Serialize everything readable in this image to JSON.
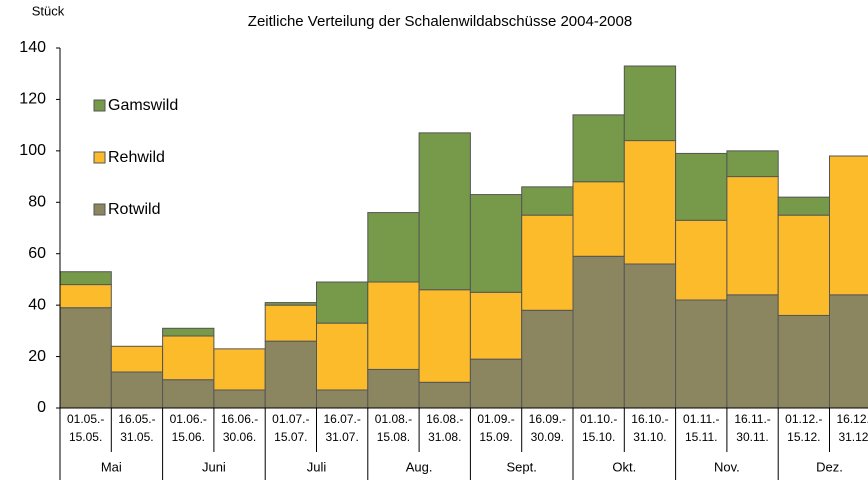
{
  "chart_data": {
    "type": "bar",
    "stacked": true,
    "title": "Zeitliche Verteilung der Schalenwildabschüsse 2004-2008",
    "y_label": "Stück",
    "categories": [
      [
        "01.05.-",
        "15.05."
      ],
      [
        "16.05.-",
        "31.05."
      ],
      [
        "01.06.-",
        "15.06."
      ],
      [
        "16.06.-",
        "30.06."
      ],
      [
        "01.07.-",
        "15.07."
      ],
      [
        "16.07.-",
        "31.07."
      ],
      [
        "01.08.-",
        "15.08."
      ],
      [
        "16.08.-",
        "31.08."
      ],
      [
        "01.09.-",
        "15.09."
      ],
      [
        "16.09.-",
        "30.09."
      ],
      [
        "01.10.-",
        "15.10."
      ],
      [
        "16.10.-",
        "31.10."
      ],
      [
        "01.11.-",
        "15.11."
      ],
      [
        "16.11.-",
        "30.11."
      ],
      [
        "01.12.-",
        "15.12."
      ],
      [
        "16.12.-",
        "31.12."
      ]
    ],
    "months": [
      "Mai",
      "Juni",
      "Juli",
      "Aug.",
      "Sept.",
      "Okt.",
      "Nov.",
      "Dez."
    ],
    "series": [
      {
        "name": "Rotwild",
        "color": "#8b8660",
        "values": [
          39,
          14,
          11,
          7,
          26,
          7,
          15,
          10,
          19,
          38,
          59,
          56,
          42,
          44,
          36,
          44
        ]
      },
      {
        "name": "Rehwild",
        "color": "#fbbb2a",
        "values": [
          9,
          10,
          17,
          16,
          14,
          26,
          34,
          36,
          26,
          37,
          29,
          48,
          31,
          46,
          39,
          54
        ]
      },
      {
        "name": "Gamswild",
        "color": "#76994a",
        "values": [
          5,
          0,
          3,
          0,
          1,
          16,
          27,
          61,
          38,
          11,
          26,
          29,
          26,
          10,
          7,
          0
        ]
      }
    ],
    "ylim": [
      0,
      140
    ],
    "yticks": [
      0,
      20,
      40,
      60,
      80,
      100,
      120,
      140
    ],
    "grid": false,
    "legend": "upper left"
  }
}
